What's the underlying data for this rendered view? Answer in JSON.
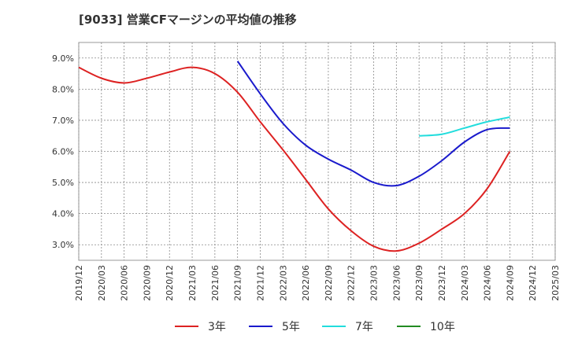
{
  "title": "[9033]  営業CFマージンの平均値の推移",
  "chart_data": {
    "type": "line",
    "title": "[9033]  営業CFマージンの平均値の推移",
    "xlabel": "",
    "ylabel": "",
    "x_categories": [
      "2019/12",
      "2020/03",
      "2020/06",
      "2020/09",
      "2020/12",
      "2021/03",
      "2021/06",
      "2021/09",
      "2021/12",
      "2022/03",
      "2022/06",
      "2022/09",
      "2022/12",
      "2023/03",
      "2023/06",
      "2023/09",
      "2023/12",
      "2024/03",
      "2024/06",
      "2024/09",
      "2024/12",
      "2025/03"
    ],
    "ylim": [
      2.5,
      9.5
    ],
    "y_ticks": [
      3.0,
      4.0,
      5.0,
      6.0,
      7.0,
      8.0,
      9.0
    ],
    "y_tick_labels": [
      "3.0%",
      "4.0%",
      "5.0%",
      "6.0%",
      "7.0%",
      "8.0%",
      "9.0%"
    ],
    "grid": true,
    "legend_position": "bottom",
    "series": [
      {
        "name": "3年",
        "color": "#dd2222",
        "values": [
          8.7,
          8.35,
          8.2,
          8.35,
          8.55,
          8.7,
          8.5,
          7.9,
          6.95,
          6.05,
          5.1,
          4.15,
          3.45,
          2.95,
          2.8,
          3.05,
          3.5,
          4.0,
          4.8,
          6.0,
          null,
          null
        ]
      },
      {
        "name": "5年",
        "color": "#1a1acc",
        "values": [
          null,
          null,
          null,
          null,
          null,
          null,
          null,
          8.9,
          7.85,
          6.9,
          6.2,
          5.75,
          5.4,
          5.0,
          4.9,
          5.2,
          5.7,
          6.3,
          6.7,
          6.75,
          null,
          null
        ]
      },
      {
        "name": "7年",
        "color": "#22dddd",
        "values": [
          null,
          null,
          null,
          null,
          null,
          null,
          null,
          null,
          null,
          null,
          null,
          null,
          null,
          null,
          null,
          6.5,
          6.55,
          6.75,
          6.95,
          7.1,
          null,
          null
        ]
      },
      {
        "name": "10年",
        "color": "#228B22",
        "values": [
          null,
          null,
          null,
          null,
          null,
          null,
          null,
          null,
          null,
          null,
          null,
          null,
          null,
          null,
          null,
          null,
          null,
          null,
          null,
          null,
          null,
          null
        ]
      }
    ]
  }
}
